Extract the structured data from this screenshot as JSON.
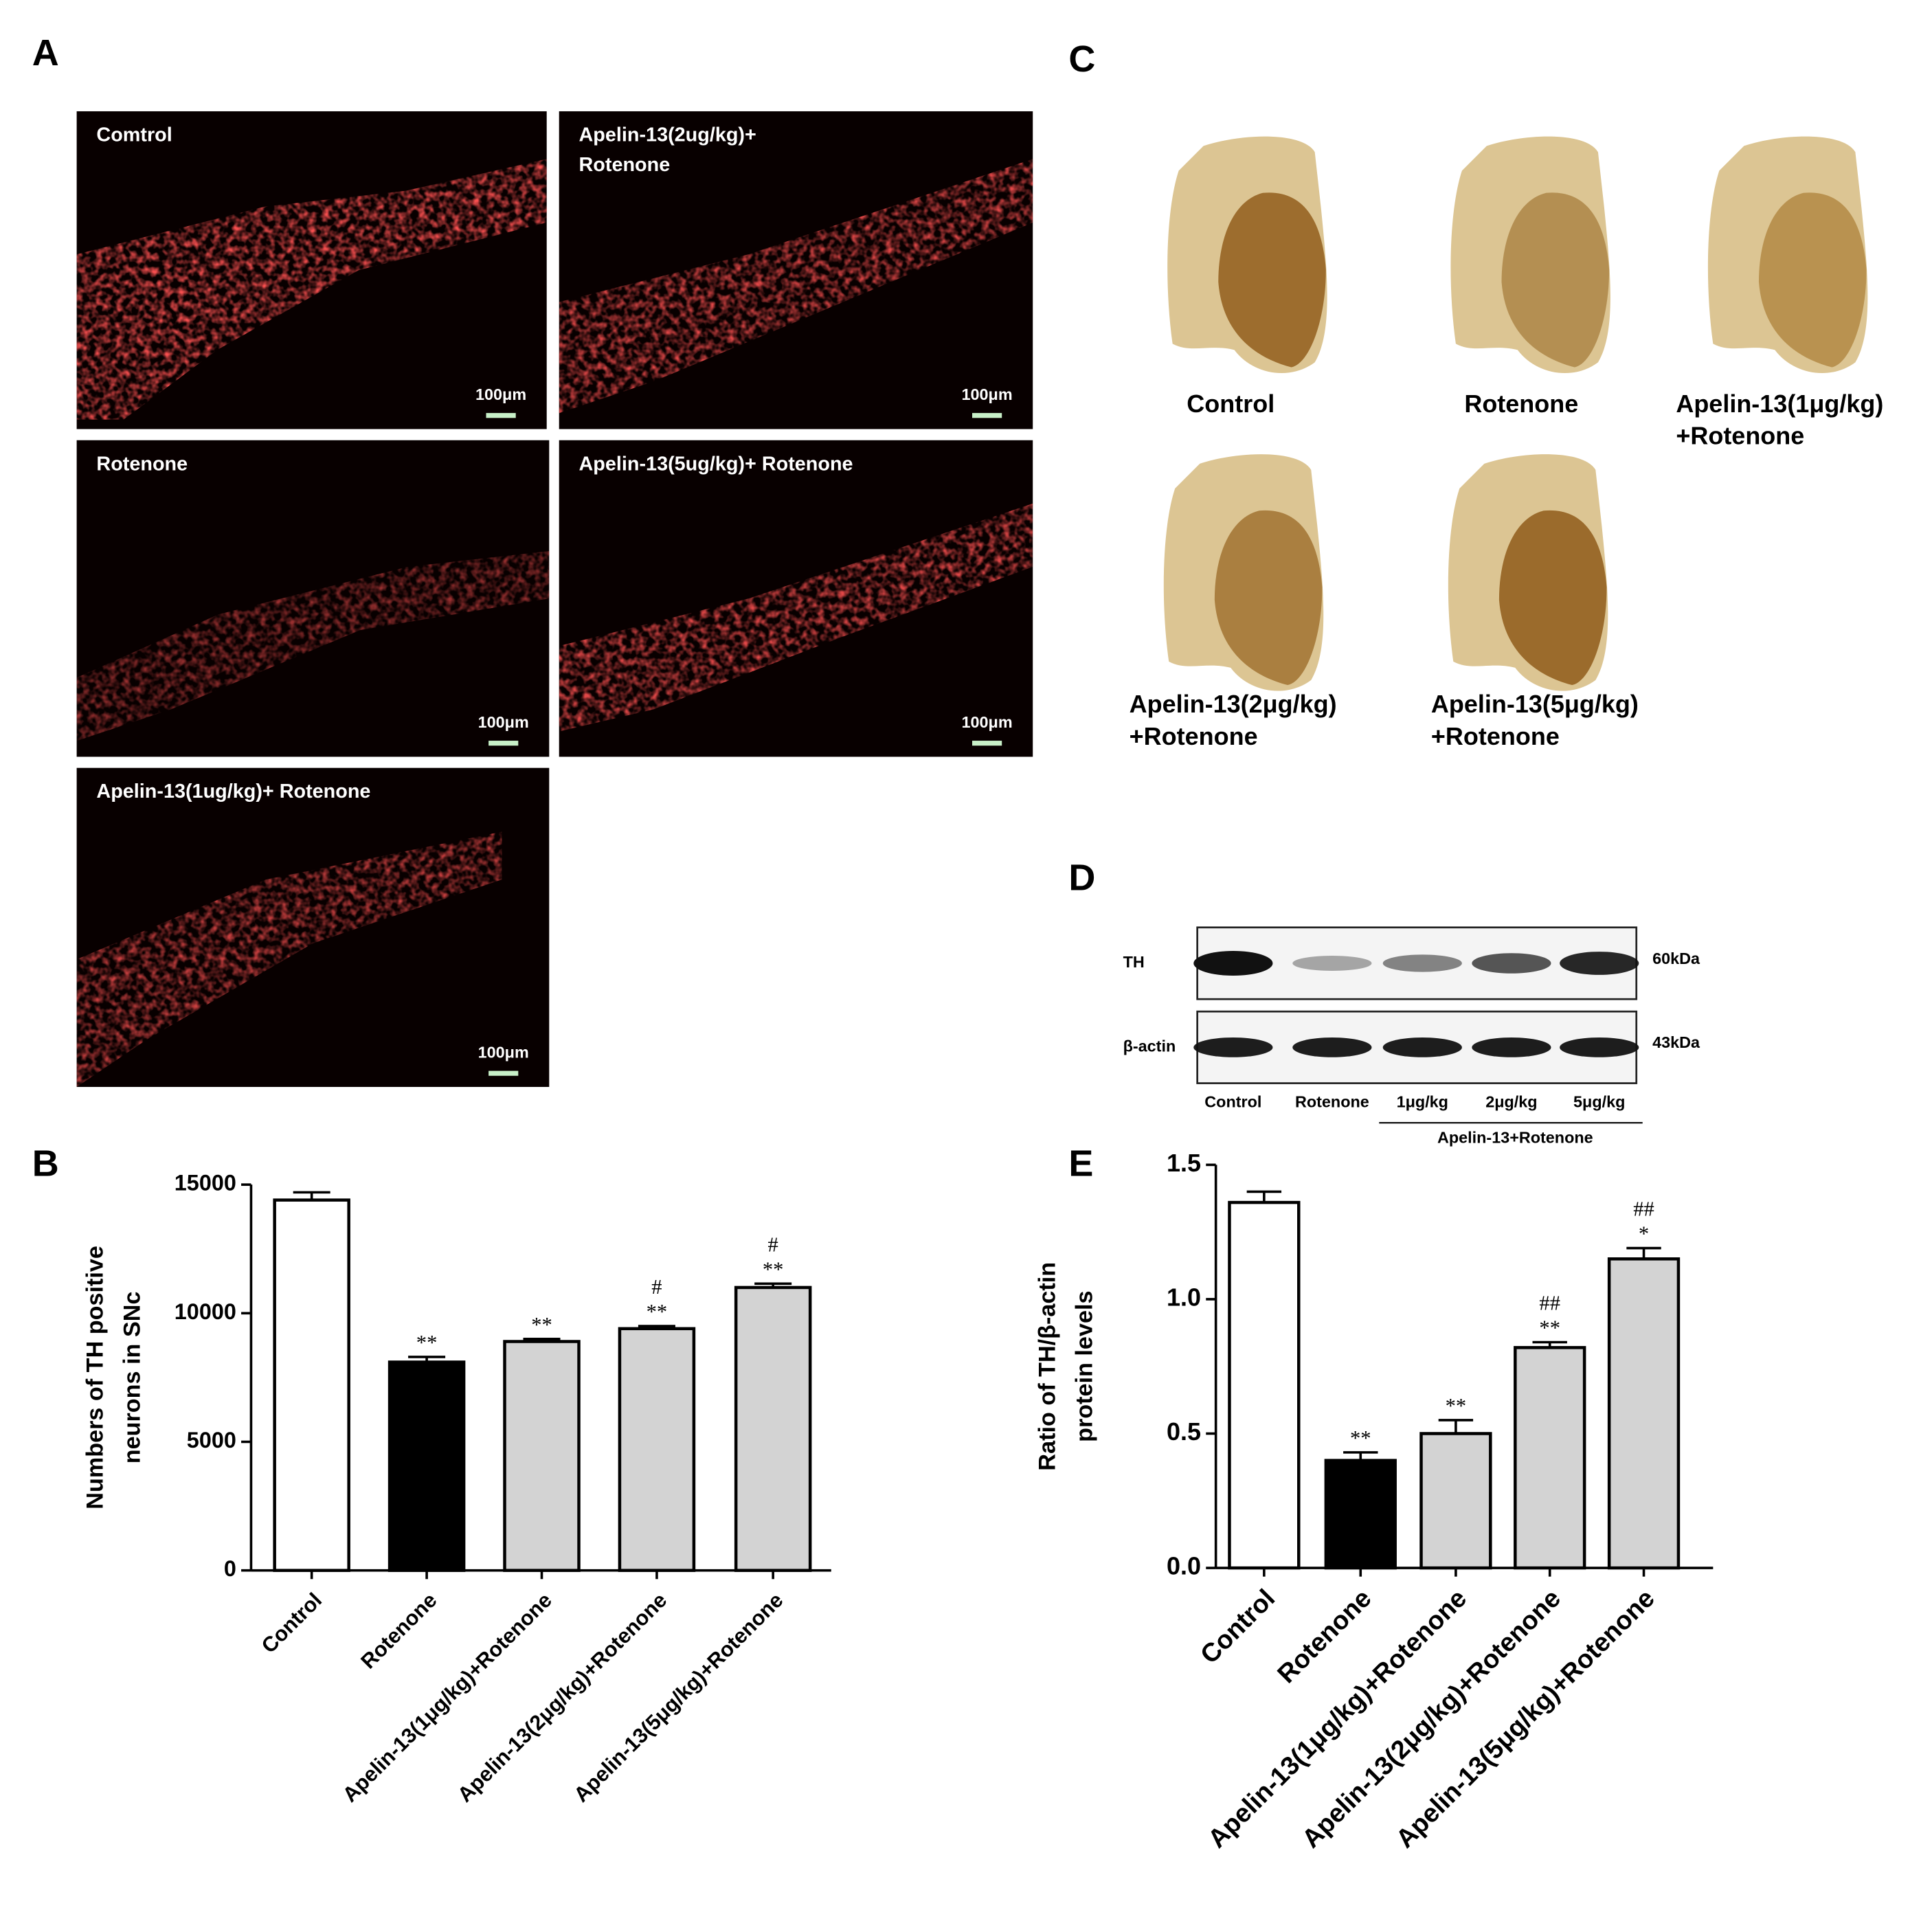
{
  "panel_a": {
    "label": "A",
    "images": [
      {
        "caption": [
          "Comtrol"
        ],
        "scale_bar": "100μm"
      },
      {
        "caption": [
          "Apelin-13(2ug/kg)+",
          "Rotenone"
        ],
        "scale_bar": "100μm"
      },
      {
        "caption": [
          "Rotenone"
        ],
        "scale_bar": "100μm"
      },
      {
        "caption": [
          "Apelin-13(5ug/kg)+ Rotenone"
        ],
        "scale_bar": "100μm"
      },
      {
        "caption": [
          "Apelin-13(1ug/kg)+ Rotenone"
        ],
        "scale_bar": "100μm"
      }
    ]
  },
  "panel_c": {
    "label": "C",
    "sections": [
      {
        "caption": [
          "Control"
        ]
      },
      {
        "caption": [
          "Rotenone"
        ]
      },
      {
        "caption": [
          "Apelin-13(1μg/kg)",
          "+Rotenone"
        ]
      },
      {
        "caption": [
          "Apelin-13(2μg/kg)",
          "+Rotenone"
        ]
      },
      {
        "caption": [
          "Apelin-13(5μg/kg)",
          "+Rotenone"
        ]
      }
    ]
  },
  "panel_d": {
    "label": "D",
    "rows": [
      {
        "name": "TH",
        "size": "60kDa"
      },
      {
        "name": "β-actin",
        "size": "43kDa"
      }
    ],
    "lanes": [
      "Control",
      "Rotenone",
      "1μg/kg",
      "2μg/kg",
      "5μg/kg"
    ],
    "group": "Apelin-13+Rotenone"
  },
  "chart_data": [
    {
      "type": "bar",
      "panel": "B",
      "ylabel": [
        "Numbers of TH positive",
        "neurons in SNc"
      ],
      "categories": [
        "Control",
        "Rotenone",
        "Apelin-13(1μg/kg)+Rotenone",
        "Apelin-13(2μg/kg)+Rotenone",
        "Apelin-13(5μg/kg)+Rotenone"
      ],
      "values": [
        14400,
        8100,
        8900,
        9400,
        11000
      ],
      "errors": [
        300,
        200,
        100,
        100,
        150
      ],
      "colors": [
        "#ffffff",
        "#000000",
        "#d3d3d3",
        "#d3d3d3",
        "#d3d3d3"
      ],
      "edgecolor": "#000000",
      "annotations": [
        null,
        [
          "**"
        ],
        [
          "**"
        ],
        [
          "#",
          "**"
        ],
        [
          "#",
          "**"
        ]
      ],
      "ylim": [
        0,
        15000
      ],
      "yticks": [
        0,
        5000,
        10000,
        15000
      ]
    },
    {
      "type": "bar",
      "panel": "E",
      "ylabel": [
        "Ratio of TH/β-actin",
        "protein levels"
      ],
      "categories": [
        "Control",
        "Rotenone",
        "Apelin-13(1μg/kg)+Rotenone",
        "Apelin-13(2μg/kg)+Rotenone",
        "Apelin-13(5μg/kg)+Rotenone"
      ],
      "values": [
        1.36,
        0.4,
        0.5,
        0.82,
        1.15
      ],
      "errors": [
        0.04,
        0.03,
        0.05,
        0.02,
        0.04
      ],
      "colors": [
        "#ffffff",
        "#000000",
        "#d3d3d3",
        "#d3d3d3",
        "#d3d3d3"
      ],
      "edgecolor": "#000000",
      "annotations": [
        null,
        [
          "**"
        ],
        [
          "**"
        ],
        [
          "##",
          "**"
        ],
        [
          "##",
          "*"
        ]
      ],
      "ylim": [
        0,
        1.5
      ],
      "yticks": [
        {
          "value": 0,
          "label": "0.0"
        },
        0.5,
        {
          "value": 1,
          "label": "1.0"
        },
        1.5
      ]
    }
  ]
}
